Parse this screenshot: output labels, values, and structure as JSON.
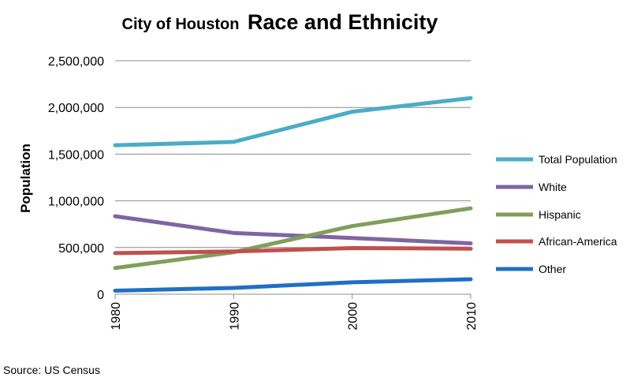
{
  "title_prefix": "City of Houston",
  "title_main": "Race and Ethnicity",
  "source": "Source: US Census",
  "chart_data": {
    "type": "line",
    "x": [
      1980,
      1990,
      2000,
      2010
    ],
    "x_tick_labels": [
      "1980",
      "1990",
      "2000",
      "2010"
    ],
    "ylabel": "Population",
    "ylim": [
      0,
      2500000
    ],
    "y_ticks": [
      0,
      500000,
      1000000,
      1500000,
      2000000,
      2500000
    ],
    "y_tick_labels": [
      "0",
      "500,000",
      "1,000,000",
      "1,500,000",
      "2,000,000",
      "2,500,000"
    ],
    "grid": "horizontal",
    "legend_position": "right",
    "series": [
      {
        "name": "Total Population",
        "color": "#4BACC6",
        "values": [
          1595000,
          1631000,
          1954000,
          2100000
        ]
      },
      {
        "name": "White",
        "color": "#8064A2",
        "values": [
          835000,
          656000,
          602000,
          545000
        ]
      },
      {
        "name": "Hispanic",
        "color": "#7F9F5A",
        "values": [
          281000,
          450000,
          730000,
          920000
        ]
      },
      {
        "name": "African-America",
        "color": "#C0504D",
        "values": [
          440000,
          458000,
          494000,
          488000
        ]
      },
      {
        "name": "Other",
        "color": "#1F6FC5",
        "values": [
          38000,
          68000,
          128000,
          160000
        ]
      }
    ]
  }
}
